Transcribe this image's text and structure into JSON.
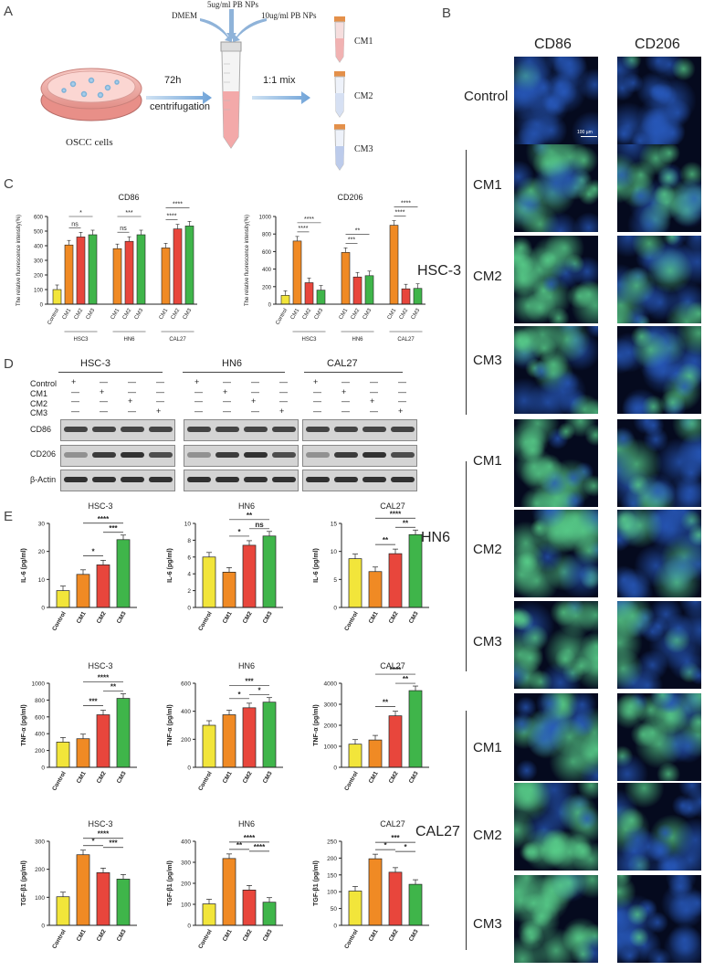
{
  "panels": {
    "a": "A",
    "b": "B",
    "c": "C",
    "d": "D",
    "e": "E"
  },
  "panelA": {
    "dish_label": "OSCC cells",
    "step1_top": "72h",
    "step1_bottom": "centrifugation",
    "step2": "1:1 mix",
    "tube_inputs": [
      "DMEM",
      "5ug/ml PB NPs",
      "10ug/ml PB NPs"
    ],
    "tubes": [
      "CM1",
      "CM2",
      "CM3"
    ]
  },
  "panelB": {
    "columns": [
      "CD86",
      "CD206"
    ],
    "row_control": "Control",
    "scale_bar": "100 µm",
    "groups": [
      {
        "name": "HSC-3",
        "rows": [
          "CM1",
          "CM2",
          "CM3"
        ]
      },
      {
        "name": "HN6",
        "rows": [
          "CM1",
          "CM2",
          "CM3"
        ]
      },
      {
        "name": "CAL27",
        "rows": [
          "CM1",
          "CM2",
          "CM3"
        ]
      }
    ]
  },
  "panelD": {
    "groups": [
      "HSC-3",
      "HN6",
      "CAL27"
    ],
    "conditions": [
      "Control",
      "CM1",
      "CM2",
      "CM3"
    ],
    "signs": [
      "+",
      "—",
      "—",
      "—",
      "—",
      "+",
      "—",
      "—",
      "—",
      "—",
      "+",
      "—",
      "—",
      "—",
      "—",
      "+"
    ],
    "blots": [
      "CD86",
      "CD206",
      "β-Actin"
    ]
  },
  "colors": {
    "control": "#f2e53a",
    "cm1": "#f08a24",
    "cm2": "#e8463c",
    "cm3": "#3fb54a",
    "fluor_blue": "#1a3a7a",
    "fluor_green": "#46c87a"
  },
  "chart_data": [
    {
      "id": "C1",
      "type": "bar",
      "title": "CD86",
      "ylabel": "The relative fluorescence intensity(%)",
      "ylim": [
        0,
        600
      ],
      "yticks": [
        0,
        100,
        200,
        300,
        400,
        500,
        600
      ],
      "categories": [
        "Control",
        "CM1",
        "CM2",
        "CM3",
        "CM1",
        "CM2",
        "CM3",
        "CM1",
        "CM2",
        "CM3"
      ],
      "values": [
        100,
        405,
        460,
        475,
        380,
        430,
        475,
        385,
        515,
        535
      ],
      "groups": [
        "HSC3",
        "HN6",
        "CAL27"
      ],
      "annotations": [
        "*",
        "ns",
        "***",
        "ns",
        "****",
        "****"
      ]
    },
    {
      "id": "C2",
      "type": "bar",
      "title": "CD206",
      "ylabel": "The relative fluorescence intensity(%)",
      "ylim": [
        0,
        1000
      ],
      "yticks": [
        0,
        200,
        400,
        600,
        800,
        1000
      ],
      "categories": [
        "Control",
        "CM1",
        "CM2",
        "CM3",
        "CM1",
        "CM2",
        "CM3",
        "CM1",
        "CM2",
        "CM3"
      ],
      "values": [
        100,
        720,
        245,
        160,
        590,
        310,
        325,
        900,
        175,
        180
      ],
      "groups": [
        "HSC3",
        "HN6",
        "CAL27"
      ],
      "annotations": [
        "****",
        "****",
        "**",
        "***",
        "****",
        "****"
      ]
    },
    {
      "id": "E1",
      "type": "bar",
      "title": "HSC-3",
      "ylabel": "IL-6 (pg/ml)",
      "ylim": [
        0,
        30
      ],
      "yticks": [
        0,
        10,
        20,
        30
      ],
      "categories": [
        "Control",
        "CM1",
        "CM2",
        "CM3"
      ],
      "values": [
        6,
        11.8,
        15.2,
        24.2
      ],
      "annotations": [
        "****",
        "***",
        "*"
      ]
    },
    {
      "id": "E2",
      "type": "bar",
      "title": "HN6",
      "ylabel": "IL-6 (pg/ml)",
      "ylim": [
        0,
        10
      ],
      "yticks": [
        0,
        2,
        4,
        6,
        8,
        10
      ],
      "categories": [
        "Control",
        "CM1",
        "CM2",
        "CM3"
      ],
      "values": [
        6,
        4.2,
        7.4,
        8.5
      ],
      "annotations": [
        "**",
        "ns",
        "*"
      ]
    },
    {
      "id": "E3",
      "type": "bar",
      "title": "CAL27",
      "ylabel": "IL-6 (pg/ml)",
      "ylim": [
        0,
        15
      ],
      "yticks": [
        0,
        5,
        10,
        15
      ],
      "categories": [
        "Control",
        "CM1",
        "CM2",
        "CM3"
      ],
      "values": [
        8.7,
        6.4,
        9.6,
        13
      ],
      "annotations": [
        "****",
        "**",
        "**"
      ]
    },
    {
      "id": "E4",
      "type": "bar",
      "title": "HSC-3",
      "ylabel": "TNF-α (pg/ml)",
      "ylim": [
        0,
        1000
      ],
      "yticks": [
        0,
        200,
        400,
        600,
        800,
        1000
      ],
      "categories": [
        "Control",
        "CM1",
        "CM2",
        "CM3"
      ],
      "values": [
        300,
        340,
        625,
        820
      ],
      "annotations": [
        "****",
        "**",
        "***"
      ]
    },
    {
      "id": "E5",
      "type": "bar",
      "title": "HN6",
      "ylabel": "TNF-α (pg/ml)",
      "ylim": [
        0,
        600
      ],
      "yticks": [
        0,
        200,
        400,
        600
      ],
      "categories": [
        "Control",
        "CM1",
        "CM2",
        "CM3"
      ],
      "values": [
        300,
        375,
        425,
        465
      ],
      "annotations": [
        "***",
        "*",
        "*"
      ]
    },
    {
      "id": "E6",
      "type": "bar",
      "title": "CAL27",
      "ylabel": "TNF-α (pg/ml)",
      "ylim": [
        0,
        4000
      ],
      "yticks": [
        0,
        1000,
        2000,
        3000,
        4000
      ],
      "categories": [
        "Control",
        "CM1",
        "CM2",
        "CM3"
      ],
      "values": [
        1100,
        1300,
        2450,
        3650
      ],
      "annotations": [
        "****",
        "**",
        "**"
      ]
    },
    {
      "id": "E7",
      "type": "bar",
      "title": "HSC-3",
      "ylabel": "TGF-β1 (pg/ml)",
      "ylim": [
        0,
        300
      ],
      "yticks": [
        0,
        100,
        200,
        300
      ],
      "categories": [
        "Control",
        "CM1",
        "CM2",
        "CM3"
      ],
      "values": [
        102,
        252,
        188,
        165
      ],
      "annotations": [
        "****",
        "***",
        "*"
      ]
    },
    {
      "id": "E8",
      "type": "bar",
      "title": "HN6",
      "ylabel": "TGF-β1 (pg/ml)",
      "ylim": [
        0,
        400
      ],
      "yticks": [
        0,
        100,
        200,
        300,
        400
      ],
      "categories": [
        "Control",
        "CM1",
        "CM2",
        "CM3"
      ],
      "values": [
        102,
        318,
        168,
        110
      ],
      "annotations": [
        "****",
        "****",
        "**"
      ]
    },
    {
      "id": "E9",
      "type": "bar",
      "title": "CAL27",
      "ylabel": "TGF-β1 (pg/ml)",
      "ylim": [
        0,
        250
      ],
      "yticks": [
        0,
        50,
        100,
        150,
        200,
        250
      ],
      "categories": [
        "Control",
        "CM1",
        "CM2",
        "CM3"
      ],
      "values": [
        102,
        198,
        158,
        122
      ],
      "annotations": [
        "***",
        "*",
        "*"
      ]
    }
  ]
}
